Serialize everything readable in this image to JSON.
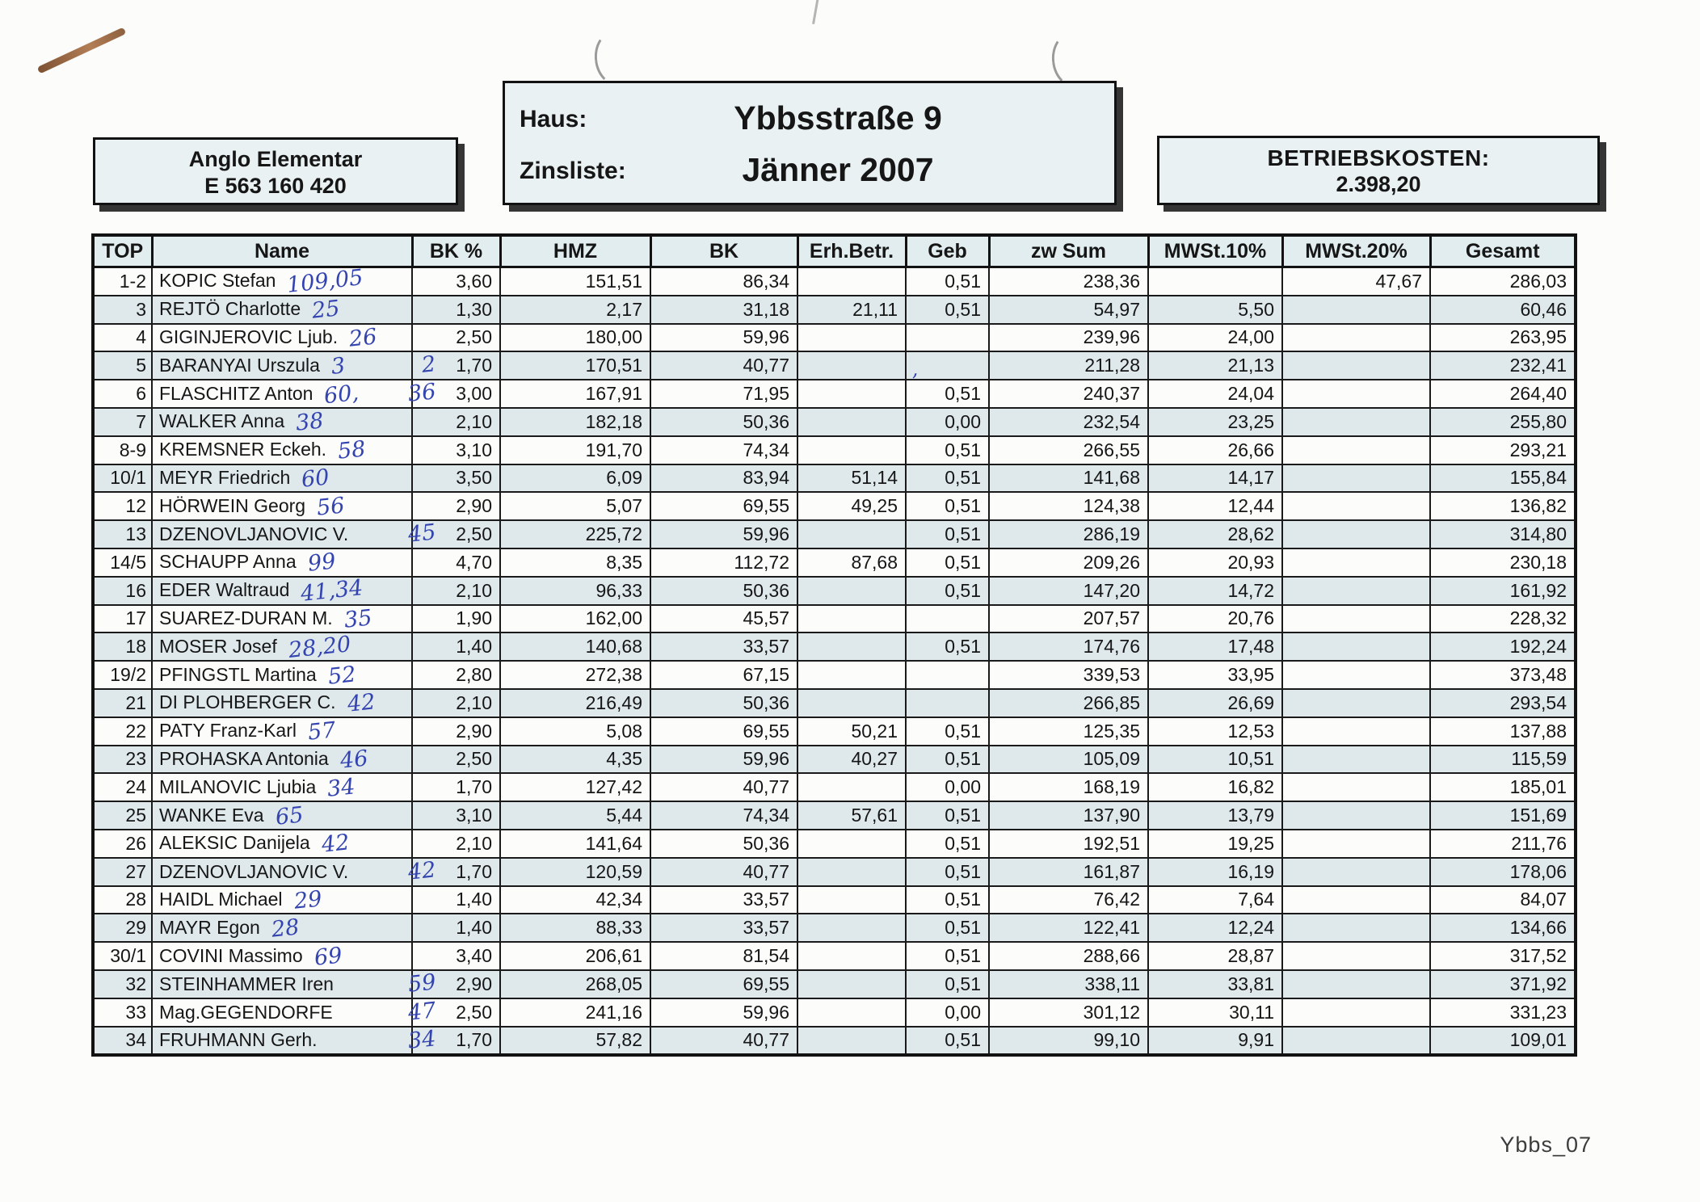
{
  "account_box": {
    "line1": "Anglo Elementar",
    "line2": "E 563 160 420"
  },
  "house_box": {
    "haus_label": "Haus:",
    "zinsliste_label": "Zinsliste:",
    "house": "Ybbsstraße 9",
    "period": "Jänner 2007"
  },
  "costs_box": {
    "label": "BETRIEBSKOSTEN:",
    "value": "2.398,20"
  },
  "footer": "Ybbs_07",
  "colors": {
    "stripe": "#dfe9ec",
    "box_fill": "#e9f1f2",
    "handwriting_ink": "#3344b0",
    "border": "#121212"
  },
  "table": {
    "columns": [
      "TOP",
      "Name",
      "BK %",
      "HMZ",
      "BK",
      "Erh.Betr.",
      "Geb",
      "zw Sum",
      "MWSt.10%",
      "MWSt.20%",
      "Gesamt"
    ],
    "rows": [
      {
        "top": "1-2",
        "name": "KOPIC Stefan",
        "hw": "109,05",
        "hw_margin": "",
        "bk_pct": "3,60",
        "hmz": "151,51",
        "bk": "86,34",
        "erh": "",
        "geb": "0,51",
        "geb_hw": "",
        "zwsum": "238,36",
        "mwst10": "",
        "mwst20": "47,67",
        "gesamt": "286,03"
      },
      {
        "top": "3",
        "name": "REJTÖ Charlotte",
        "hw": "25",
        "hw_margin": "",
        "bk_pct": "1,30",
        "hmz": "2,17",
        "bk": "31,18",
        "erh": "21,11",
        "geb": "0,51",
        "geb_hw": "",
        "zwsum": "54,97",
        "mwst10": "5,50",
        "mwst20": "",
        "gesamt": "60,46"
      },
      {
        "top": "4",
        "name": "GIGINJEROVIC Ljub.",
        "hw": "26",
        "hw_margin": "",
        "bk_pct": "2,50",
        "hmz": "180,00",
        "bk": "59,96",
        "erh": "",
        "geb": "",
        "geb_hw": "",
        "zwsum": "239,96",
        "mwst10": "24,00",
        "mwst20": "",
        "gesamt": "263,95"
      },
      {
        "top": "5",
        "name": "BARANYAI Urszula",
        "hw": "3",
        "hw_margin": "2",
        "bk_pct": "1,70",
        "hmz": "170,51",
        "bk": "40,77",
        "erh": "",
        "geb": "",
        "geb_hw": ",",
        "zwsum": "211,28",
        "mwst10": "21,13",
        "mwst20": "",
        "gesamt": "232,41"
      },
      {
        "top": "6",
        "name": "FLASCHITZ Anton",
        "hw": "60,",
        "hw_margin": "36",
        "bk_pct": "3,00",
        "hmz": "167,91",
        "bk": "71,95",
        "erh": "",
        "geb": "0,51",
        "geb_hw": "",
        "zwsum": "240,37",
        "mwst10": "24,04",
        "mwst20": "",
        "gesamt": "264,40"
      },
      {
        "top": "7",
        "name": "WALKER Anna",
        "hw": "38",
        "hw_margin": "",
        "bk_pct": "2,10",
        "hmz": "182,18",
        "bk": "50,36",
        "erh": "",
        "geb": "0,00",
        "geb_hw": "",
        "zwsum": "232,54",
        "mwst10": "23,25",
        "mwst20": "",
        "gesamt": "255,80"
      },
      {
        "top": "8-9",
        "name": "KREMSNER Eckeh.",
        "hw": "58",
        "hw_margin": "",
        "bk_pct": "3,10",
        "hmz": "191,70",
        "bk": "74,34",
        "erh": "",
        "geb": "0,51",
        "geb_hw": "",
        "zwsum": "266,55",
        "mwst10": "26,66",
        "mwst20": "",
        "gesamt": "293,21"
      },
      {
        "top": "10/1",
        "name": "MEYR Friedrich",
        "hw": "60",
        "hw_margin": "",
        "bk_pct": "3,50",
        "hmz": "6,09",
        "bk": "83,94",
        "erh": "51,14",
        "geb": "0,51",
        "geb_hw": "",
        "zwsum": "141,68",
        "mwst10": "14,17",
        "mwst20": "",
        "gesamt": "155,84"
      },
      {
        "top": "12",
        "name": "HÖRWEIN Georg",
        "hw": "56",
        "hw_margin": "",
        "bk_pct": "2,90",
        "hmz": "5,07",
        "bk": "69,55",
        "erh": "49,25",
        "geb": "0,51",
        "geb_hw": "",
        "zwsum": "124,38",
        "mwst10": "12,44",
        "mwst20": "",
        "gesamt": "136,82"
      },
      {
        "top": "13",
        "name": "DZENOVLJANOVIC V.",
        "hw": "",
        "hw_margin": "45",
        "bk_pct": "2,50",
        "hmz": "225,72",
        "bk": "59,96",
        "erh": "",
        "geb": "0,51",
        "geb_hw": "",
        "zwsum": "286,19",
        "mwst10": "28,62",
        "mwst20": "",
        "gesamt": "314,80"
      },
      {
        "top": "14/5",
        "name": "SCHAUPP Anna",
        "hw": "99",
        "hw_margin": "",
        "bk_pct": "4,70",
        "hmz": "8,35",
        "bk": "112,72",
        "erh": "87,68",
        "geb": "0,51",
        "geb_hw": "",
        "zwsum": "209,26",
        "mwst10": "20,93",
        "mwst20": "",
        "gesamt": "230,18"
      },
      {
        "top": "16",
        "name": "EDER Waltraud",
        "hw": "41,34",
        "hw_margin": "",
        "bk_pct": "2,10",
        "hmz": "96,33",
        "bk": "50,36",
        "erh": "",
        "geb": "0,51",
        "geb_hw": "",
        "zwsum": "147,20",
        "mwst10": "14,72",
        "mwst20": "",
        "gesamt": "161,92"
      },
      {
        "top": "17",
        "name": "SUAREZ-DURAN M.",
        "hw": "35",
        "hw_margin": "",
        "bk_pct": "1,90",
        "hmz": "162,00",
        "bk": "45,57",
        "erh": "",
        "geb": "",
        "geb_hw": "",
        "zwsum": "207,57",
        "mwst10": "20,76",
        "mwst20": "",
        "gesamt": "228,32"
      },
      {
        "top": "18",
        "name": "MOSER Josef",
        "hw": "28,20",
        "hw_margin": "",
        "bk_pct": "1,40",
        "hmz": "140,68",
        "bk": "33,57",
        "erh": "",
        "geb": "0,51",
        "geb_hw": "",
        "zwsum": "174,76",
        "mwst10": "17,48",
        "mwst20": "",
        "gesamt": "192,24"
      },
      {
        "top": "19/2",
        "name": "PFINGSTL Martina",
        "hw": "52",
        "hw_margin": "",
        "bk_pct": "2,80",
        "hmz": "272,38",
        "bk": "67,15",
        "erh": "",
        "geb": "",
        "geb_hw": "",
        "zwsum": "339,53",
        "mwst10": "33,95",
        "mwst20": "",
        "gesamt": "373,48"
      },
      {
        "top": "21",
        "name": "DI PLOHBERGER C.",
        "hw": "42",
        "hw_margin": "",
        "bk_pct": "2,10",
        "hmz": "216,49",
        "bk": "50,36",
        "erh": "",
        "geb": "",
        "geb_hw": "",
        "zwsum": "266,85",
        "mwst10": "26,69",
        "mwst20": "",
        "gesamt": "293,54"
      },
      {
        "top": "22",
        "name": "PATY Franz-Karl",
        "hw": "57",
        "hw_margin": "",
        "bk_pct": "2,90",
        "hmz": "5,08",
        "bk": "69,55",
        "erh": "50,21",
        "geb": "0,51",
        "geb_hw": "",
        "zwsum": "125,35",
        "mwst10": "12,53",
        "mwst20": "",
        "gesamt": "137,88"
      },
      {
        "top": "23",
        "name": "PROHASKA Antonia",
        "hw": "46",
        "hw_margin": "",
        "bk_pct": "2,50",
        "hmz": "4,35",
        "bk": "59,96",
        "erh": "40,27",
        "geb": "0,51",
        "geb_hw": "",
        "zwsum": "105,09",
        "mwst10": "10,51",
        "mwst20": "",
        "gesamt": "115,59"
      },
      {
        "top": "24",
        "name": "MILANOVIC Ljubia",
        "hw": "34",
        "hw_margin": "",
        "bk_pct": "1,70",
        "hmz": "127,42",
        "bk": "40,77",
        "erh": "",
        "geb": "0,00",
        "geb_hw": "",
        "zwsum": "168,19",
        "mwst10": "16,82",
        "mwst20": "",
        "gesamt": "185,01"
      },
      {
        "top": "25",
        "name": "WANKE Eva",
        "hw": "65",
        "hw_margin": "",
        "bk_pct": "3,10",
        "hmz": "5,44",
        "bk": "74,34",
        "erh": "57,61",
        "geb": "0,51",
        "geb_hw": "",
        "zwsum": "137,90",
        "mwst10": "13,79",
        "mwst20": "",
        "gesamt": "151,69"
      },
      {
        "top": "26",
        "name": "ALEKSIC Danijela",
        "hw": "42",
        "hw_margin": "",
        "bk_pct": "2,10",
        "hmz": "141,64",
        "bk": "50,36",
        "erh": "",
        "geb": "0,51",
        "geb_hw": "",
        "zwsum": "192,51",
        "mwst10": "19,25",
        "mwst20": "",
        "gesamt": "211,76"
      },
      {
        "top": "27",
        "name": "DZENOVLJANOVIC V.",
        "hw": "",
        "hw_margin": "42",
        "bk_pct": "1,70",
        "hmz": "120,59",
        "bk": "40,77",
        "erh": "",
        "geb": "0,51",
        "geb_hw": "",
        "zwsum": "161,87",
        "mwst10": "16,19",
        "mwst20": "",
        "gesamt": "178,06"
      },
      {
        "top": "28",
        "name": "HAIDL Michael",
        "hw": "29",
        "hw_margin": "",
        "bk_pct": "1,40",
        "hmz": "42,34",
        "bk": "33,57",
        "erh": "",
        "geb": "0,51",
        "geb_hw": "",
        "zwsum": "76,42",
        "mwst10": "7,64",
        "mwst20": "",
        "gesamt": "84,07"
      },
      {
        "top": "29",
        "name": "MAYR Egon",
        "hw": "28",
        "hw_margin": "",
        "bk_pct": "1,40",
        "hmz": "88,33",
        "bk": "33,57",
        "erh": "",
        "geb": "0,51",
        "geb_hw": "",
        "zwsum": "122,41",
        "mwst10": "12,24",
        "mwst20": "",
        "gesamt": "134,66"
      },
      {
        "top": "30/1",
        "name": "COVINI Massimo",
        "hw": "69",
        "hw_margin": "",
        "bk_pct": "3,40",
        "hmz": "206,61",
        "bk": "81,54",
        "erh": "",
        "geb": "0,51",
        "geb_hw": "",
        "zwsum": "288,66",
        "mwst10": "28,87",
        "mwst20": "",
        "gesamt": "317,52"
      },
      {
        "top": "32",
        "name": "STEINHAMMER Iren",
        "hw": "",
        "hw_margin": "59",
        "bk_pct": "2,90",
        "hmz": "268,05",
        "bk": "69,55",
        "erh": "",
        "geb": "0,51",
        "geb_hw": "",
        "zwsum": "338,11",
        "mwst10": "33,81",
        "mwst20": "",
        "gesamt": "371,92"
      },
      {
        "top": "33",
        "name": "Mag.GEGENDORFE",
        "hw": "",
        "hw_margin": "47",
        "bk_pct": "2,50",
        "hmz": "241,16",
        "bk": "59,96",
        "erh": "",
        "geb": "0,00",
        "geb_hw": "",
        "zwsum": "301,12",
        "mwst10": "30,11",
        "mwst20": "",
        "gesamt": "331,23"
      },
      {
        "top": "34",
        "name": "FRUHMANN Gerh.",
        "hw": "",
        "hw_margin": "34",
        "bk_pct": "1,70",
        "hmz": "57,82",
        "bk": "40,77",
        "erh": "",
        "geb": "0,51",
        "geb_hw": "",
        "zwsum": "99,10",
        "mwst10": "9,91",
        "mwst20": "",
        "gesamt": "109,01"
      }
    ]
  }
}
